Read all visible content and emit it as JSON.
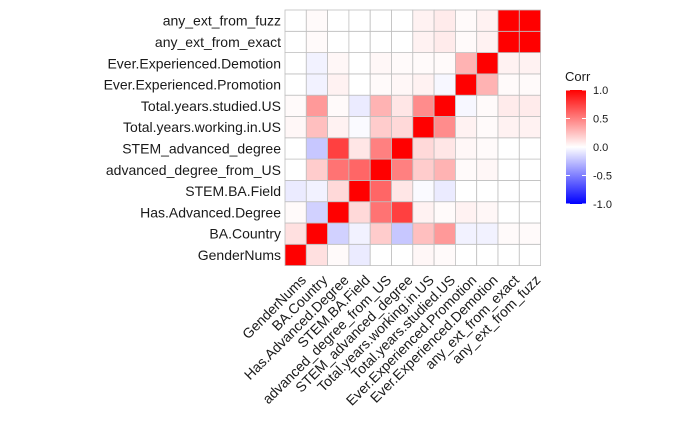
{
  "chart_data": {
    "type": "heatmap",
    "variables": [
      "GenderNums",
      "BA.Country",
      "Has.Advanced.Degree",
      "STEM.BA.Field",
      "advanced_degree_from_US",
      "STEM_advanced_degree",
      "Total.years.working.in.US",
      "Total.years.studied.US",
      "Ever.Experienced.Promotion",
      "Ever.Experienced.Demotion",
      "any_ext_from_exact",
      "any_ext_from_fuzz"
    ],
    "matrix": [
      [
        1.0,
        0.12,
        0.02,
        -0.08,
        0.0,
        0.0,
        0.03,
        0.02,
        0.0,
        0.0,
        0.0,
        0.0
      ],
      [
        0.12,
        1.0,
        -0.18,
        -0.05,
        0.2,
        -0.22,
        0.25,
        0.4,
        -0.05,
        -0.05,
        0.02,
        0.02
      ],
      [
        0.02,
        -0.18,
        1.0,
        0.15,
        0.55,
        0.75,
        0.05,
        0.02,
        0.05,
        0.03,
        0.0,
        0.0
      ],
      [
        -0.08,
        -0.05,
        0.15,
        1.0,
        0.6,
        0.1,
        -0.02,
        -0.08,
        0.0,
        0.0,
        0.0,
        0.0
      ],
      [
        0.0,
        0.2,
        0.55,
        0.6,
        1.0,
        0.5,
        0.2,
        0.3,
        0.02,
        0.03,
        0.0,
        0.0
      ],
      [
        0.0,
        -0.22,
        0.75,
        0.1,
        0.5,
        1.0,
        0.15,
        0.1,
        0.03,
        0.02,
        0.0,
        0.0
      ],
      [
        0.03,
        0.25,
        0.05,
        -0.02,
        0.2,
        0.15,
        1.0,
        0.45,
        0.05,
        0.02,
        0.05,
        0.05
      ],
      [
        0.02,
        0.4,
        0.02,
        -0.08,
        0.3,
        0.1,
        0.45,
        1.0,
        -0.03,
        0.02,
        0.08,
        0.08
      ],
      [
        0.0,
        -0.05,
        0.05,
        0.0,
        0.02,
        0.03,
        0.05,
        -0.03,
        1.0,
        0.3,
        0.02,
        0.02
      ],
      [
        0.0,
        -0.05,
        0.03,
        0.0,
        0.03,
        0.02,
        0.02,
        0.02,
        0.3,
        1.0,
        0.05,
        0.05
      ],
      [
        0.0,
        0.02,
        0.0,
        0.0,
        0.0,
        0.0,
        0.05,
        0.08,
        0.02,
        0.05,
        1.0,
        1.0
      ],
      [
        0.0,
        0.02,
        0.0,
        0.0,
        0.0,
        0.0,
        0.05,
        0.08,
        0.02,
        0.05,
        1.0,
        1.0
      ]
    ],
    "legend": {
      "title": "Corr",
      "ticks": [
        "1.0",
        "0.5",
        "0.0",
        "-0.5",
        "-1.0"
      ],
      "range": [
        -1,
        1
      ],
      "placement": "right"
    },
    "colors": {
      "low": "#0000ff",
      "mid": "#ffffff",
      "high": "#ff0000",
      "grid": "#bfbfbf"
    }
  }
}
